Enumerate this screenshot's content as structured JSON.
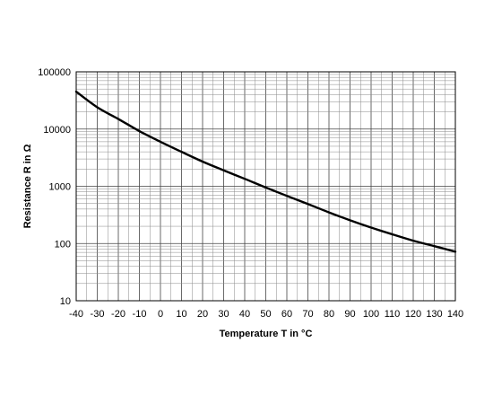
{
  "chart_data": {
    "type": "line",
    "title": "",
    "xlabel": "Temperature T in °C",
    "ylabel": "Resistance R in Ω",
    "xlim": [
      -40,
      140
    ],
    "ylim": [
      10,
      100000
    ],
    "yscale": "log",
    "grid": true,
    "x_ticks": [
      -40,
      -30,
      -20,
      -10,
      0,
      10,
      20,
      30,
      40,
      50,
      60,
      70,
      80,
      90,
      100,
      110,
      120,
      130,
      140
    ],
    "y_ticks": [
      10,
      100,
      1000,
      10000,
      100000
    ],
    "x_tick_labels": [
      "-40",
      "-30",
      "-20",
      "-10",
      "0",
      "10",
      "20",
      "30",
      "40",
      "50",
      "60",
      "70",
      "80",
      "90",
      "100",
      "110",
      "120",
      "130",
      "140"
    ],
    "y_tick_labels": [
      "10",
      "100",
      "1000",
      "10000",
      "100000"
    ],
    "series": [
      {
        "x": [
          -40,
          -30,
          -20,
          -10,
          0,
          10,
          20,
          30,
          40,
          50,
          60,
          70,
          80,
          90,
          100,
          110,
          120,
          130,
          140
        ],
        "y": [
          45000,
          24000,
          15000,
          9200,
          6000,
          4000,
          2700,
          1900,
          1350,
          950,
          680,
          490,
          350,
          255,
          190,
          145,
          112,
          90,
          72
        ]
      }
    ]
  }
}
